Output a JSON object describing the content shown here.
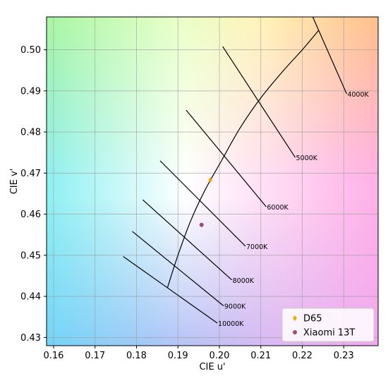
{
  "chart_data": {
    "type": "scatter",
    "xlabel": "CIE u'",
    "ylabel": "CIE v'",
    "xlim": [
      0.1583,
      0.2383
    ],
    "ylim": [
      0.428,
      0.508
    ],
    "xticks": [
      "0.16",
      "0.17",
      "0.18",
      "0.19",
      "0.20",
      "0.21",
      "0.22",
      "0.23"
    ],
    "yticks": [
      "0.43",
      "0.44",
      "0.45",
      "0.46",
      "0.47",
      "0.48",
      "0.49",
      "0.50"
    ],
    "grid": true,
    "legend_position": "bottom-right",
    "background": "CIE 1976 u'v' chromaticity color fill",
    "planckian_locus": [
      {
        "u": 0.1875,
        "v": 0.4422
      },
      {
        "u": 0.19,
        "v": 0.45
      },
      {
        "u": 0.193,
        "v": 0.4582
      },
      {
        "u": 0.1965,
        "v": 0.4658
      },
      {
        "u": 0.2005,
        "v": 0.473
      },
      {
        "u": 0.205,
        "v": 0.481
      },
      {
        "u": 0.21,
        "v": 0.4883
      },
      {
        "u": 0.2155,
        "v": 0.495
      },
      {
        "u": 0.22,
        "v": 0.5
      },
      {
        "u": 0.224,
        "v": 0.5048
      }
    ],
    "isotherms": [
      {
        "label": "4000K",
        "u1": 0.221,
        "v1": 0.5115,
        "u2": 0.2307,
        "v2": 0.4893
      },
      {
        "label": "5000K",
        "u1": 0.2008,
        "v1": 0.5008,
        "u2": 0.2183,
        "v2": 0.4738
      },
      {
        "label": "6000K",
        "u1": 0.192,
        "v1": 0.4853,
        "u2": 0.2113,
        "v2": 0.4618
      },
      {
        "label": "7000K",
        "u1": 0.1857,
        "v1": 0.473,
        "u2": 0.2063,
        "v2": 0.4522
      },
      {
        "label": "8000K",
        "u1": 0.1815,
        "v1": 0.4635,
        "u2": 0.203,
        "v2": 0.444
      },
      {
        "label": "9000K",
        "u1": 0.179,
        "v1": 0.4558,
        "u2": 0.201,
        "v2": 0.4377
      },
      {
        "label": "10000K",
        "u1": 0.1768,
        "v1": 0.4497,
        "u2": 0.1995,
        "v2": 0.4335
      }
    ],
    "series": [
      {
        "name": "D65",
        "color": "#f0a800",
        "marker": "diamond",
        "points": [
          {
            "u": 0.1978,
            "v": 0.4683
          }
        ]
      },
      {
        "name": "Xiaomi 13T",
        "color": "#a04a78",
        "marker": "circle",
        "points": [
          {
            "u": 0.1957,
            "v": 0.4574
          }
        ]
      }
    ]
  }
}
